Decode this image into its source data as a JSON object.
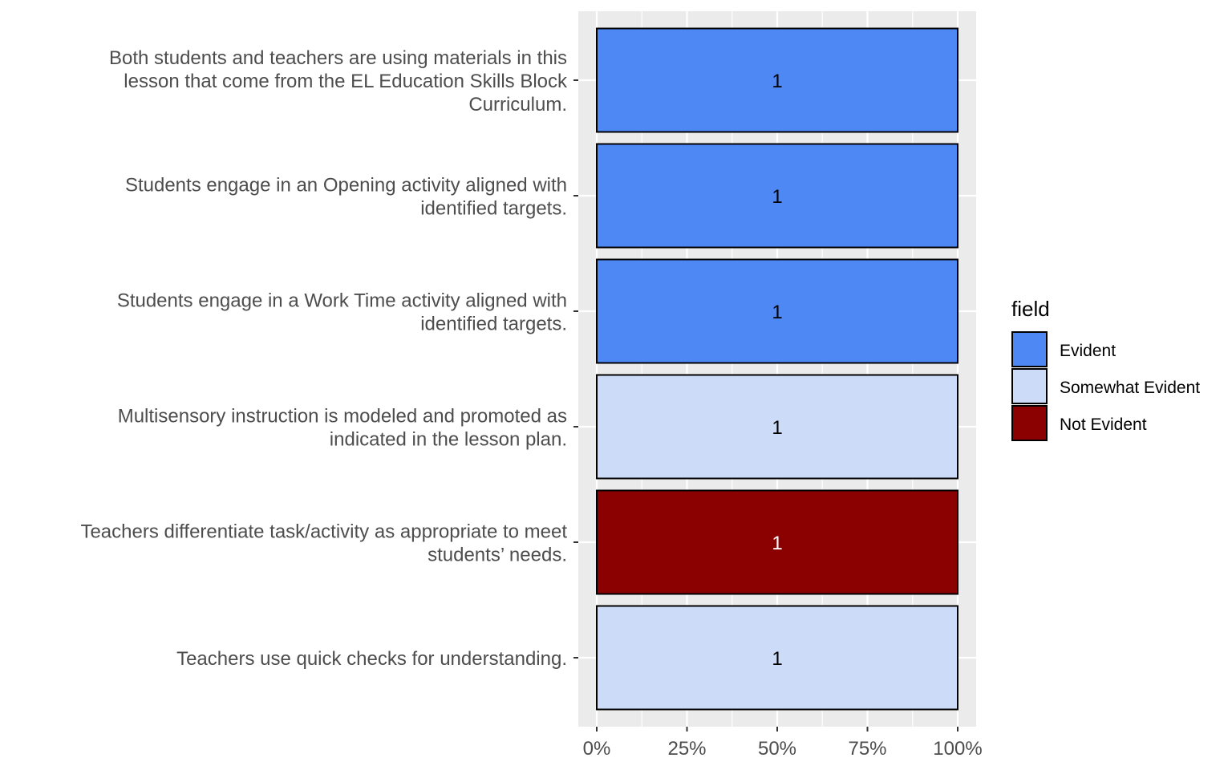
{
  "chart_data": {
    "type": "bar",
    "orientation": "horizontal",
    "stacked": "percent",
    "categories": [
      [
        "Both students and teachers are using materials in this",
        "lesson that come from the EL Education Skills Block",
        "Curriculum."
      ],
      [
        "Students engage in an Opening activity aligned with",
        "identified targets."
      ],
      [
        "Students engage in a Work Time activity aligned with",
        "identified targets."
      ],
      [
        "Multisensory instruction is modeled and promoted as",
        "indicated in the lesson plan."
      ],
      [
        "Teachers differentiate task/activity as appropriate to meet",
        "students’ needs."
      ],
      [
        "Teachers use quick checks for understanding."
      ]
    ],
    "bars": [
      {
        "field": "Evident",
        "percent": 100,
        "label": "1"
      },
      {
        "field": "Evident",
        "percent": 100,
        "label": "1"
      },
      {
        "field": "Evident",
        "percent": 100,
        "label": "1"
      },
      {
        "field": "Somewhat Evident",
        "percent": 100,
        "label": "1"
      },
      {
        "field": "Not Evident",
        "percent": 100,
        "label": "1"
      },
      {
        "field": "Somewhat Evident",
        "percent": 100,
        "label": "1"
      }
    ],
    "x_ticks": [
      "0%",
      "25%",
      "50%",
      "75%",
      "100%"
    ],
    "xlim": [
      0,
      100
    ],
    "grid": true,
    "legend": {
      "title": "field",
      "position": "right",
      "entries": [
        {
          "name": "Evident",
          "color": "#4d88f5"
        },
        {
          "name": "Somewhat Evident",
          "color": "#ccdbf8"
        },
        {
          "name": "Not Evident",
          "color": "#8b0000"
        }
      ]
    },
    "colors": {
      "panel_bg": "#ebebeb",
      "grid": "#ffffff",
      "bar_outline": "#000000",
      "label_dark": "#000000",
      "label_light": "#ffffff"
    }
  }
}
